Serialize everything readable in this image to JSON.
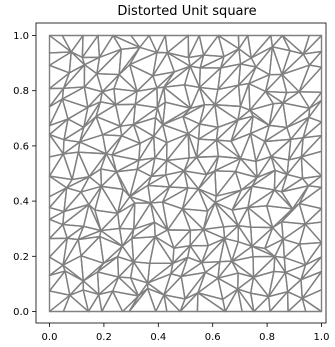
{
  "chart_data": {
    "type": "mesh",
    "title": "Distorted Unit square",
    "xlabel": "",
    "ylabel": "",
    "xlim": [
      0.0,
      1.0
    ],
    "ylim": [
      0.0,
      1.0
    ],
    "xticks": [
      "0.0",
      "0.2",
      "0.4",
      "0.6",
      "0.8",
      "1.0"
    ],
    "yticks": [
      "0.0",
      "0.2",
      "0.4",
      "0.6",
      "0.8",
      "1.0"
    ],
    "grid": false,
    "mesh": {
      "divisions": 16,
      "perturbation": 0.35,
      "edge_color": "#808080",
      "face_color": "none",
      "seed": 7
    }
  },
  "colors": {
    "mesh_edge": "#808080",
    "axes": "#000000",
    "background": "#ffffff"
  }
}
